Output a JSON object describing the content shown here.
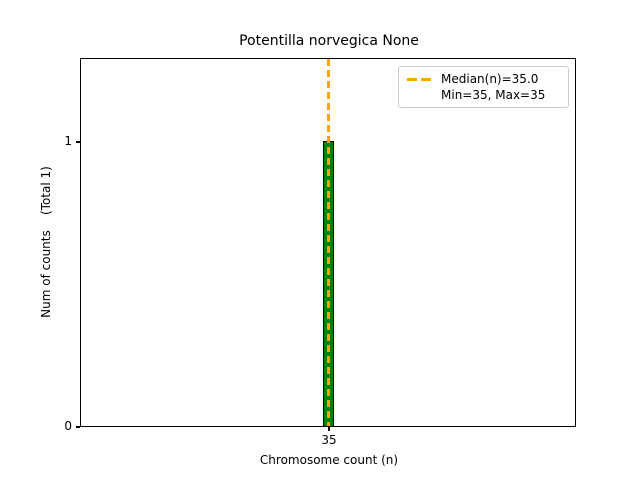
{
  "chart_data": {
    "type": "bar",
    "title": "Potentilla norvegica None",
    "xlabel": "Chromosome count (n)",
    "ylabel": "Num of counts    (Total 1)",
    "categories": [
      35
    ],
    "values": [
      1
    ],
    "x_ticks": [
      "35"
    ],
    "y_ticks": [
      "0",
      "1"
    ],
    "ylim": [
      0,
      1.3
    ],
    "grid": false,
    "legend_position": "upper right",
    "legend_entries": [
      "Median(n)=35.0",
      "Min=35, Max=35"
    ],
    "stats": {
      "median": 35.0,
      "min": 35,
      "max": 35,
      "total_counts": 1
    },
    "bar_color": "#008000",
    "bar_edge_color": "#000000",
    "median_line_color": "#FFA500",
    "median_line_style": "dashed",
    "legend_border_color": "#cccccc"
  }
}
